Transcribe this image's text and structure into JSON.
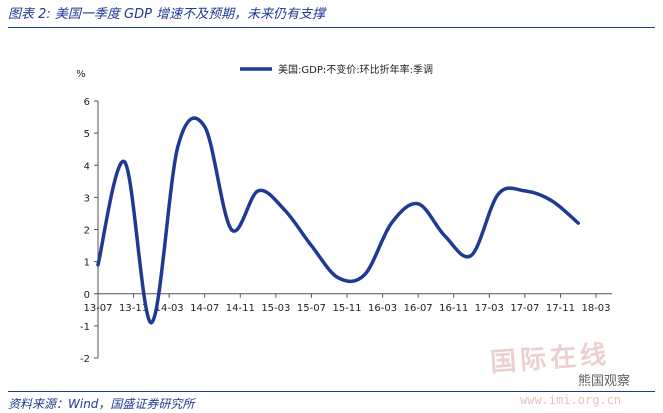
{
  "header": {
    "title": "图表 2: 美国一季度 GDP 增速不及预期，未来仍有支撑"
  },
  "footer": {
    "source": "资料来源：Wind，国盛证券研究所"
  },
  "watermark": {
    "text": "国际在线",
    "tag": "熊国观察",
    "url": "www.imi.org.cn"
  },
  "chart_data": {
    "type": "line",
    "ylabel": "%",
    "ylim": [
      -2,
      6
    ],
    "yticks": [
      -2,
      -1,
      0,
      1,
      2,
      3,
      4,
      5,
      6
    ],
    "legend_position": "top-center",
    "line_color": "#1f3a93",
    "xtick_labels": [
      "13-07",
      "13-11",
      "14-03",
      "14-07",
      "14-11",
      "15-03",
      "15-07",
      "15-11",
      "16-03",
      "16-07",
      "16-11",
      "17-03",
      "17-07",
      "17-11",
      "18-03"
    ],
    "series": [
      {
        "name": "美国:GDP:不变价:环比折年率:季调",
        "x": [
          "13-07",
          "13-10",
          "14-01",
          "14-04",
          "14-07",
          "14-10",
          "15-01",
          "15-04",
          "15-07",
          "15-10",
          "16-01",
          "16-04",
          "16-07",
          "16-10",
          "17-01",
          "17-04",
          "17-07",
          "17-10",
          "18-01"
        ],
        "values": [
          0.9,
          4.1,
          -0.9,
          4.6,
          5.2,
          2.0,
          3.2,
          2.6,
          1.5,
          0.5,
          0.6,
          2.2,
          2.8,
          1.8,
          1.2,
          3.1,
          3.2,
          2.9,
          2.2
        ]
      }
    ]
  }
}
